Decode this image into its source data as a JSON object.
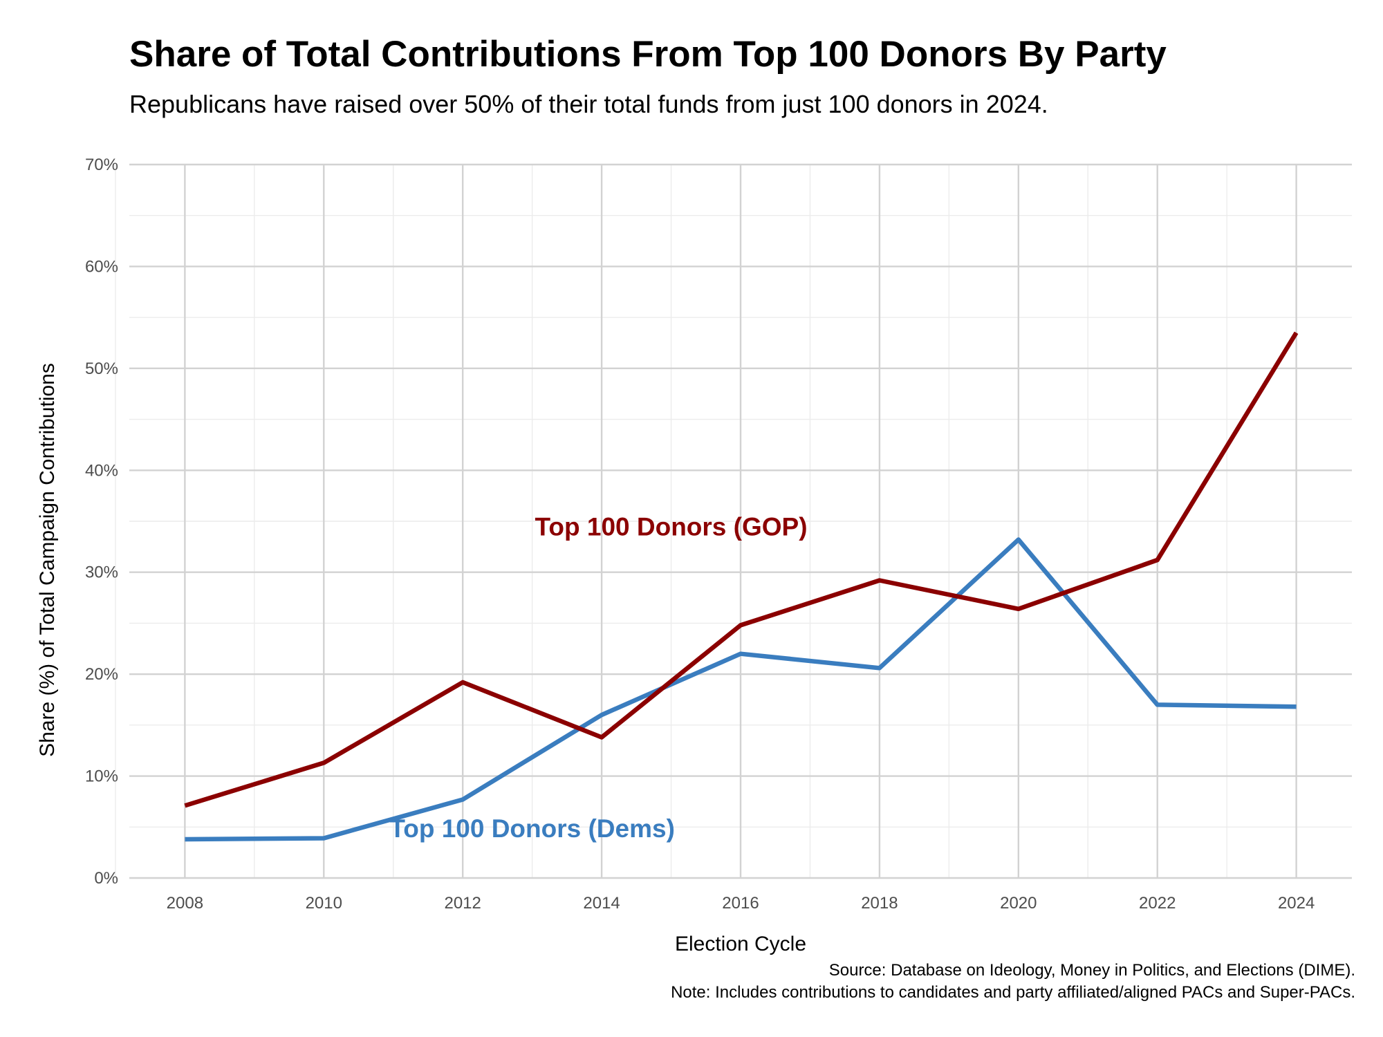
{
  "chart_data": {
    "type": "line",
    "title": "Share of Total Contributions From Top 100 Donors By Party",
    "subtitle": "Republicans have raised over 50% of their total funds from just 100 donors in 2024.",
    "xlabel": "Election Cycle",
    "ylabel": "Share (%) of Total Campaign Contributions",
    "x": [
      2008,
      2010,
      2012,
      2014,
      2016,
      2018,
      2020,
      2022,
      2024
    ],
    "xlim": [
      2007.2,
      2024.8
    ],
    "ylim": [
      0,
      70
    ],
    "x_ticks": [
      "2008",
      "2010",
      "2012",
      "2014",
      "2016",
      "2018",
      "2020",
      "2022",
      "2024"
    ],
    "y_ticks": [
      "0%",
      "10%",
      "20%",
      "30%",
      "40%",
      "50%",
      "60%",
      "70%"
    ],
    "grid": true,
    "legend": "direct labels",
    "series": [
      {
        "name": "Top 100 Donors (GOP)",
        "color": "#8b0000",
        "values": [
          7.1,
          11.3,
          19.2,
          13.8,
          24.8,
          29.2,
          26.4,
          31.2,
          53.5
        ],
        "label_at": [
          2015.0,
          34.5
        ]
      },
      {
        "name": "Top 100 Donors (Dems)",
        "color": "#3a7dbf",
        "values": [
          3.8,
          3.9,
          7.7,
          16.0,
          22.0,
          20.6,
          33.2,
          17.0,
          16.8
        ],
        "label_at": [
          2013.0,
          4.9
        ]
      }
    ],
    "caption": [
      "Source: Database on Ideology, Money in Politics, and Elections (DIME).",
      "Note: Includes contributions to candidates and party affiliated/aligned PACs and Super-PACs."
    ]
  }
}
